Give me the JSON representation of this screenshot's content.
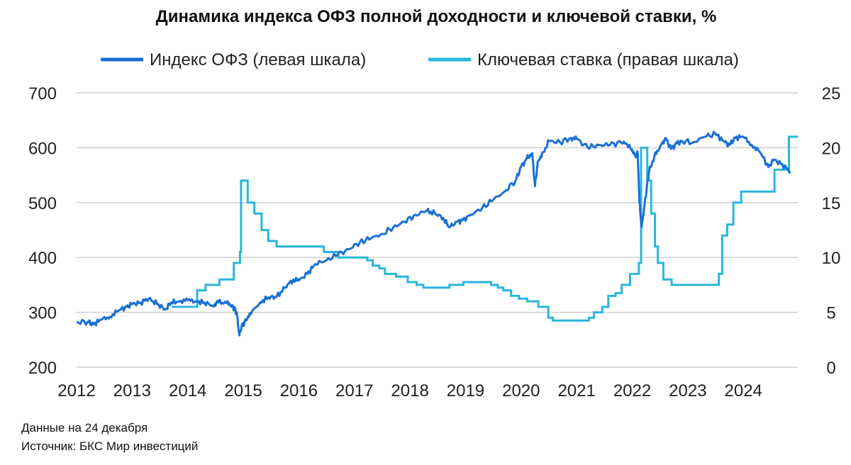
{
  "chart_data": {
    "type": "line",
    "title": "Динамика индекса ОФЗ полной доходности и ключевой ставки, %",
    "x_ticks": [
      "2012",
      "2013",
      "2014",
      "2015",
      "2016",
      "2017",
      "2018",
      "2019",
      "2020",
      "2021",
      "2022",
      "2023",
      "2024"
    ],
    "x_range": [
      2012.0,
      2024.98
    ],
    "y_left": {
      "range": [
        200,
        700
      ],
      "ticks": [
        200,
        300,
        400,
        500,
        600,
        700
      ]
    },
    "y_right": {
      "range": [
        0,
        25
      ],
      "ticks": [
        0,
        5,
        10,
        15,
        20,
        25
      ]
    },
    "grid": true,
    "legend_position": "top",
    "series": [
      {
        "name": "Индекс ОФЗ (левая шкала)",
        "axis": "left",
        "color": "#1a6fd6",
        "points": [
          [
            2012.0,
            282
          ],
          [
            2012.2,
            283
          ],
          [
            2012.3,
            278
          ],
          [
            2012.45,
            287
          ],
          [
            2012.6,
            292
          ],
          [
            2012.75,
            303
          ],
          [
            2012.9,
            310
          ],
          [
            2013.0,
            315
          ],
          [
            2013.15,
            318
          ],
          [
            2013.3,
            325
          ],
          [
            2013.45,
            315
          ],
          [
            2013.6,
            305
          ],
          [
            2013.7,
            318
          ],
          [
            2013.85,
            320
          ],
          [
            2014.0,
            322
          ],
          [
            2014.15,
            320
          ],
          [
            2014.3,
            318
          ],
          [
            2014.45,
            312
          ],
          [
            2014.55,
            318
          ],
          [
            2014.7,
            317
          ],
          [
            2014.8,
            313
          ],
          [
            2014.88,
            300
          ],
          [
            2014.93,
            258
          ],
          [
            2014.97,
            275
          ],
          [
            2015.05,
            285
          ],
          [
            2015.15,
            300
          ],
          [
            2015.3,
            318
          ],
          [
            2015.45,
            327
          ],
          [
            2015.6,
            328
          ],
          [
            2015.75,
            345
          ],
          [
            2015.9,
            360
          ],
          [
            2016.0,
            358
          ],
          [
            2016.15,
            370
          ],
          [
            2016.3,
            388
          ],
          [
            2016.5,
            395
          ],
          [
            2016.7,
            405
          ],
          [
            2016.9,
            415
          ],
          [
            2017.1,
            428
          ],
          [
            2017.3,
            435
          ],
          [
            2017.5,
            443
          ],
          [
            2017.7,
            455
          ],
          [
            2017.9,
            465
          ],
          [
            2018.1,
            478
          ],
          [
            2018.3,
            485
          ],
          [
            2018.45,
            480
          ],
          [
            2018.6,
            472
          ],
          [
            2018.7,
            455
          ],
          [
            2018.85,
            465
          ],
          [
            2018.95,
            468
          ],
          [
            2019.1,
            478
          ],
          [
            2019.3,
            490
          ],
          [
            2019.5,
            505
          ],
          [
            2019.7,
            520
          ],
          [
            2019.9,
            540
          ],
          [
            2020.0,
            565
          ],
          [
            2020.1,
            580
          ],
          [
            2020.2,
            590
          ],
          [
            2020.25,
            530
          ],
          [
            2020.3,
            575
          ],
          [
            2020.4,
            592
          ],
          [
            2020.5,
            612
          ],
          [
            2020.7,
            610
          ],
          [
            2020.9,
            618
          ],
          [
            2021.0,
            616
          ],
          [
            2021.2,
            600
          ],
          [
            2021.4,
            605
          ],
          [
            2021.6,
            605
          ],
          [
            2021.8,
            610
          ],
          [
            2021.95,
            605
          ],
          [
            2022.05,
            585
          ],
          [
            2022.1,
            590
          ],
          [
            2022.13,
            500
          ],
          [
            2022.17,
            455
          ],
          [
            2022.22,
            495
          ],
          [
            2022.3,
            555
          ],
          [
            2022.4,
            585
          ],
          [
            2022.5,
            602
          ],
          [
            2022.6,
            618
          ],
          [
            2022.7,
            598
          ],
          [
            2022.8,
            608
          ],
          [
            2022.9,
            612
          ],
          [
            2023.1,
            610
          ],
          [
            2023.3,
            620
          ],
          [
            2023.5,
            625
          ],
          [
            2023.65,
            612
          ],
          [
            2023.75,
            605
          ],
          [
            2023.85,
            618
          ],
          [
            2024.0,
            620
          ],
          [
            2024.15,
            605
          ],
          [
            2024.3,
            592
          ],
          [
            2024.45,
            565
          ],
          [
            2024.55,
            578
          ],
          [
            2024.7,
            570
          ],
          [
            2024.85,
            555
          ]
        ]
      },
      {
        "name": "Ключевая ставка (правая шкала)",
        "axis": "right",
        "color": "#2ab6dc",
        "step": true,
        "points": [
          [
            2013.71,
            5.5
          ],
          [
            2014.17,
            7.0
          ],
          [
            2014.32,
            7.5
          ],
          [
            2014.57,
            8.0
          ],
          [
            2014.83,
            9.5
          ],
          [
            2014.94,
            10.5
          ],
          [
            2014.96,
            17.0
          ],
          [
            2015.08,
            15.0
          ],
          [
            2015.2,
            14.0
          ],
          [
            2015.33,
            12.5
          ],
          [
            2015.45,
            11.5
          ],
          [
            2015.6,
            11.0
          ],
          [
            2016.45,
            10.5
          ],
          [
            2016.71,
            10.0
          ],
          [
            2017.23,
            9.75
          ],
          [
            2017.33,
            9.25
          ],
          [
            2017.45,
            9.0
          ],
          [
            2017.55,
            8.5
          ],
          [
            2017.75,
            8.25
          ],
          [
            2017.96,
            7.75
          ],
          [
            2018.12,
            7.5
          ],
          [
            2018.24,
            7.25
          ],
          [
            2018.71,
            7.5
          ],
          [
            2018.96,
            7.75
          ],
          [
            2019.46,
            7.5
          ],
          [
            2019.58,
            7.25
          ],
          [
            2019.68,
            7.0
          ],
          [
            2019.82,
            6.5
          ],
          [
            2019.96,
            6.25
          ],
          [
            2020.11,
            6.0
          ],
          [
            2020.31,
            5.5
          ],
          [
            2020.49,
            4.5
          ],
          [
            2020.57,
            4.25
          ],
          [
            2021.22,
            4.5
          ],
          [
            2021.31,
            5.0
          ],
          [
            2021.46,
            5.5
          ],
          [
            2021.57,
            6.5
          ],
          [
            2021.7,
            6.75
          ],
          [
            2021.81,
            7.5
          ],
          [
            2021.96,
            8.5
          ],
          [
            2022.12,
            9.5
          ],
          [
            2022.16,
            20.0
          ],
          [
            2022.27,
            17.0
          ],
          [
            2022.34,
            14.0
          ],
          [
            2022.41,
            11.0
          ],
          [
            2022.46,
            9.5
          ],
          [
            2022.56,
            8.0
          ],
          [
            2022.71,
            7.5
          ],
          [
            2023.56,
            8.5
          ],
          [
            2023.62,
            12.0
          ],
          [
            2023.71,
            13.0
          ],
          [
            2023.82,
            15.0
          ],
          [
            2023.96,
            16.0
          ],
          [
            2024.56,
            18.0
          ],
          [
            2024.82,
            21.0
          ],
          [
            2024.98,
            21.0
          ]
        ]
      }
    ]
  },
  "footer": {
    "date_note": "Данные на 24 декабря",
    "source": "Источник: БКС Мир инвестиций"
  }
}
